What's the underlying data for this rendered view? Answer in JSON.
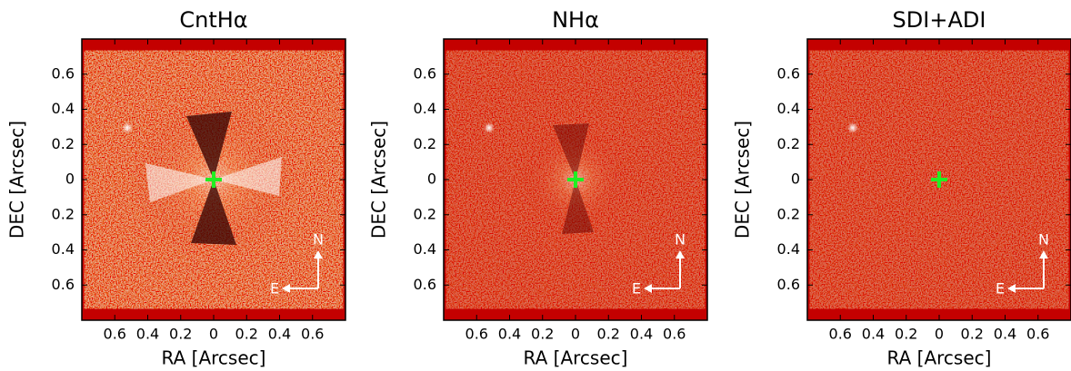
{
  "chart_data": [
    {
      "type": "image",
      "title": "CntHα",
      "xlabel": "RA [Arcsec]",
      "ylabel": "DEC [Arcsec]",
      "xlim": [
        -0.8,
        0.8
      ],
      "ylim": [
        -0.8,
        0.8
      ],
      "xticks": [
        {
          "value": -0.6,
          "label": "0.6"
        },
        {
          "value": -0.4,
          "label": "0.4"
        },
        {
          "value": -0.2,
          "label": "0.2"
        },
        0,
        0.2,
        0.4,
        0.6
      ],
      "yticks": [
        0.6,
        0.4,
        0.2,
        0,
        {
          "value": -0.2,
          "label": "0.2"
        },
        {
          "value": -0.4,
          "label": "0.4"
        },
        {
          "value": -0.6,
          "label": "0.6"
        }
      ],
      "compass": {
        "north": "N",
        "east": "E"
      }
    },
    {
      "type": "image",
      "title": "NHα",
      "xlabel": "RA [Arcsec]",
      "ylabel": "DEC [Arcsec]",
      "xlim": [
        -0.8,
        0.8
      ],
      "ylim": [
        -0.8,
        0.8
      ],
      "xticks": [
        {
          "value": -0.6,
          "label": "0.6"
        },
        {
          "value": -0.4,
          "label": "0.4"
        },
        {
          "value": -0.2,
          "label": "0.2"
        },
        0,
        0.2,
        0.4,
        0.6
      ],
      "yticks": [
        0.6,
        0.4,
        0.2,
        0,
        {
          "value": -0.2,
          "label": "0.2"
        },
        {
          "value": -0.4,
          "label": "0.4"
        },
        {
          "value": -0.6,
          "label": "0.6"
        }
      ],
      "compass": {
        "north": "N",
        "east": "E"
      }
    },
    {
      "type": "image",
      "title": "SDI+ADI",
      "xlabel": "RA [Arcsec]",
      "ylabel": "DEC [Arcsec]",
      "xlim": [
        -0.8,
        0.8
      ],
      "ylim": [
        -0.8,
        0.8
      ],
      "xticks": [
        {
          "value": -0.6,
          "label": "0.6"
        },
        {
          "value": -0.4,
          "label": "0.4"
        },
        {
          "value": -0.2,
          "label": "0.2"
        },
        0,
        0.2,
        0.4,
        0.6
      ],
      "yticks": [
        0.6,
        0.4,
        0.2,
        0,
        {
          "value": -0.2,
          "label": "0.2"
        },
        {
          "value": -0.4,
          "label": "0.4"
        },
        {
          "value": -0.6,
          "label": "0.6"
        }
      ],
      "compass": {
        "north": "N",
        "east": "E"
      }
    }
  ]
}
